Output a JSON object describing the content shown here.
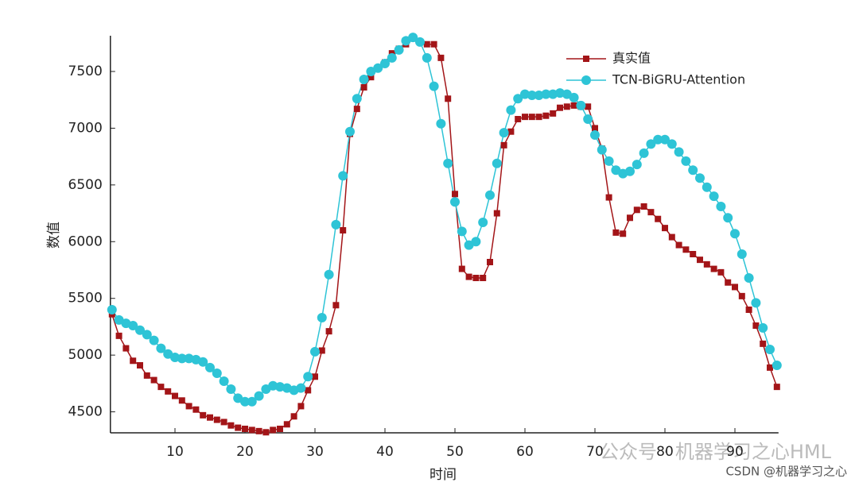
{
  "chart_data": {
    "type": "line",
    "x_label": "时间",
    "y_label": "数值",
    "x": [
      1,
      2,
      3,
      4,
      5,
      6,
      7,
      8,
      9,
      10,
      11,
      12,
      13,
      14,
      15,
      16,
      17,
      18,
      19,
      20,
      21,
      22,
      23,
      24,
      25,
      26,
      27,
      28,
      29,
      30,
      31,
      32,
      33,
      34,
      35,
      36,
      37,
      38,
      39,
      40,
      41,
      42,
      43,
      44,
      45,
      46,
      47,
      48,
      49,
      50,
      51,
      52,
      53,
      54,
      55,
      56,
      57,
      58,
      59,
      60,
      61,
      62,
      63,
      64,
      65,
      66,
      67,
      68,
      69,
      70,
      71,
      72,
      73,
      74,
      75,
      76,
      77,
      78,
      79,
      80,
      81,
      82,
      83,
      84,
      85,
      86,
      87,
      88,
      89,
      90,
      91,
      92,
      93,
      94,
      95,
      96
    ],
    "series": [
      {
        "name": "真实值",
        "color": "#a31518",
        "marker": "square",
        "values": [
          5360,
          5170,
          5060,
          4950,
          4910,
          4820,
          4780,
          4720,
          4680,
          4640,
          4600,
          4550,
          4520,
          4470,
          4450,
          4430,
          4410,
          4380,
          4360,
          4350,
          4340,
          4330,
          4320,
          4340,
          4350,
          4390,
          4460,
          4550,
          4690,
          4810,
          5040,
          5210,
          5440,
          6100,
          6950,
          7170,
          7360,
          7450,
          7530,
          7580,
          7660,
          7700,
          7740,
          7790,
          7760,
          7740,
          7740,
          7620,
          7260,
          6420,
          5760,
          5690,
          5680,
          5680,
          5820,
          6250,
          6850,
          6970,
          7080,
          7100,
          7100,
          7100,
          7110,
          7130,
          7180,
          7190,
          7200,
          7190,
          7190,
          7000,
          6820,
          6390,
          6080,
          6070,
          6210,
          6280,
          6310,
          6260,
          6200,
          6120,
          6040,
          5970,
          5930,
          5890,
          5840,
          5800,
          5760,
          5730,
          5640,
          5600,
          5520,
          5400,
          5260,
          5100,
          4890,
          4720
        ]
      },
      {
        "name": "TCN-BiGRU-Attention",
        "color": "#2ec4d6",
        "marker": "circle",
        "values": [
          5400,
          5310,
          5280,
          5260,
          5220,
          5180,
          5130,
          5060,
          5010,
          4980,
          4970,
          4970,
          4960,
          4940,
          4890,
          4840,
          4770,
          4700,
          4620,
          4590,
          4590,
          4640,
          4700,
          4730,
          4720,
          4710,
          4690,
          4710,
          4810,
          5030,
          5330,
          5710,
          6150,
          6580,
          6970,
          7260,
          7430,
          7500,
          7530,
          7570,
          7620,
          7690,
          7770,
          7800,
          7760,
          7620,
          7370,
          7040,
          6690,
          6350,
          6090,
          5970,
          6000,
          6170,
          6410,
          6690,
          6960,
          7160,
          7260,
          7300,
          7290,
          7290,
          7300,
          7300,
          7310,
          7300,
          7270,
          7200,
          7080,
          6940,
          6810,
          6710,
          6630,
          6600,
          6620,
          6680,
          6780,
          6860,
          6900,
          6900,
          6860,
          6790,
          6710,
          6630,
          6560,
          6480,
          6400,
          6310,
          6210,
          6070,
          5890,
          5680,
          5460,
          5240,
          5050,
          4910
        ]
      }
    ],
    "xlim": [
      1,
      96
    ],
    "ylim": [
      4315,
      7815
    ],
    "xticks": [
      10,
      20,
      30,
      40,
      50,
      60,
      70,
      80,
      90
    ],
    "yticks": [
      4500,
      5000,
      5500,
      6000,
      6500,
      7000,
      7500
    ],
    "grid": false,
    "legend": "upper right",
    "annotations": [
      "公众号 · 机器学习之心HML",
      "CSDN @机器学习之心"
    ]
  }
}
